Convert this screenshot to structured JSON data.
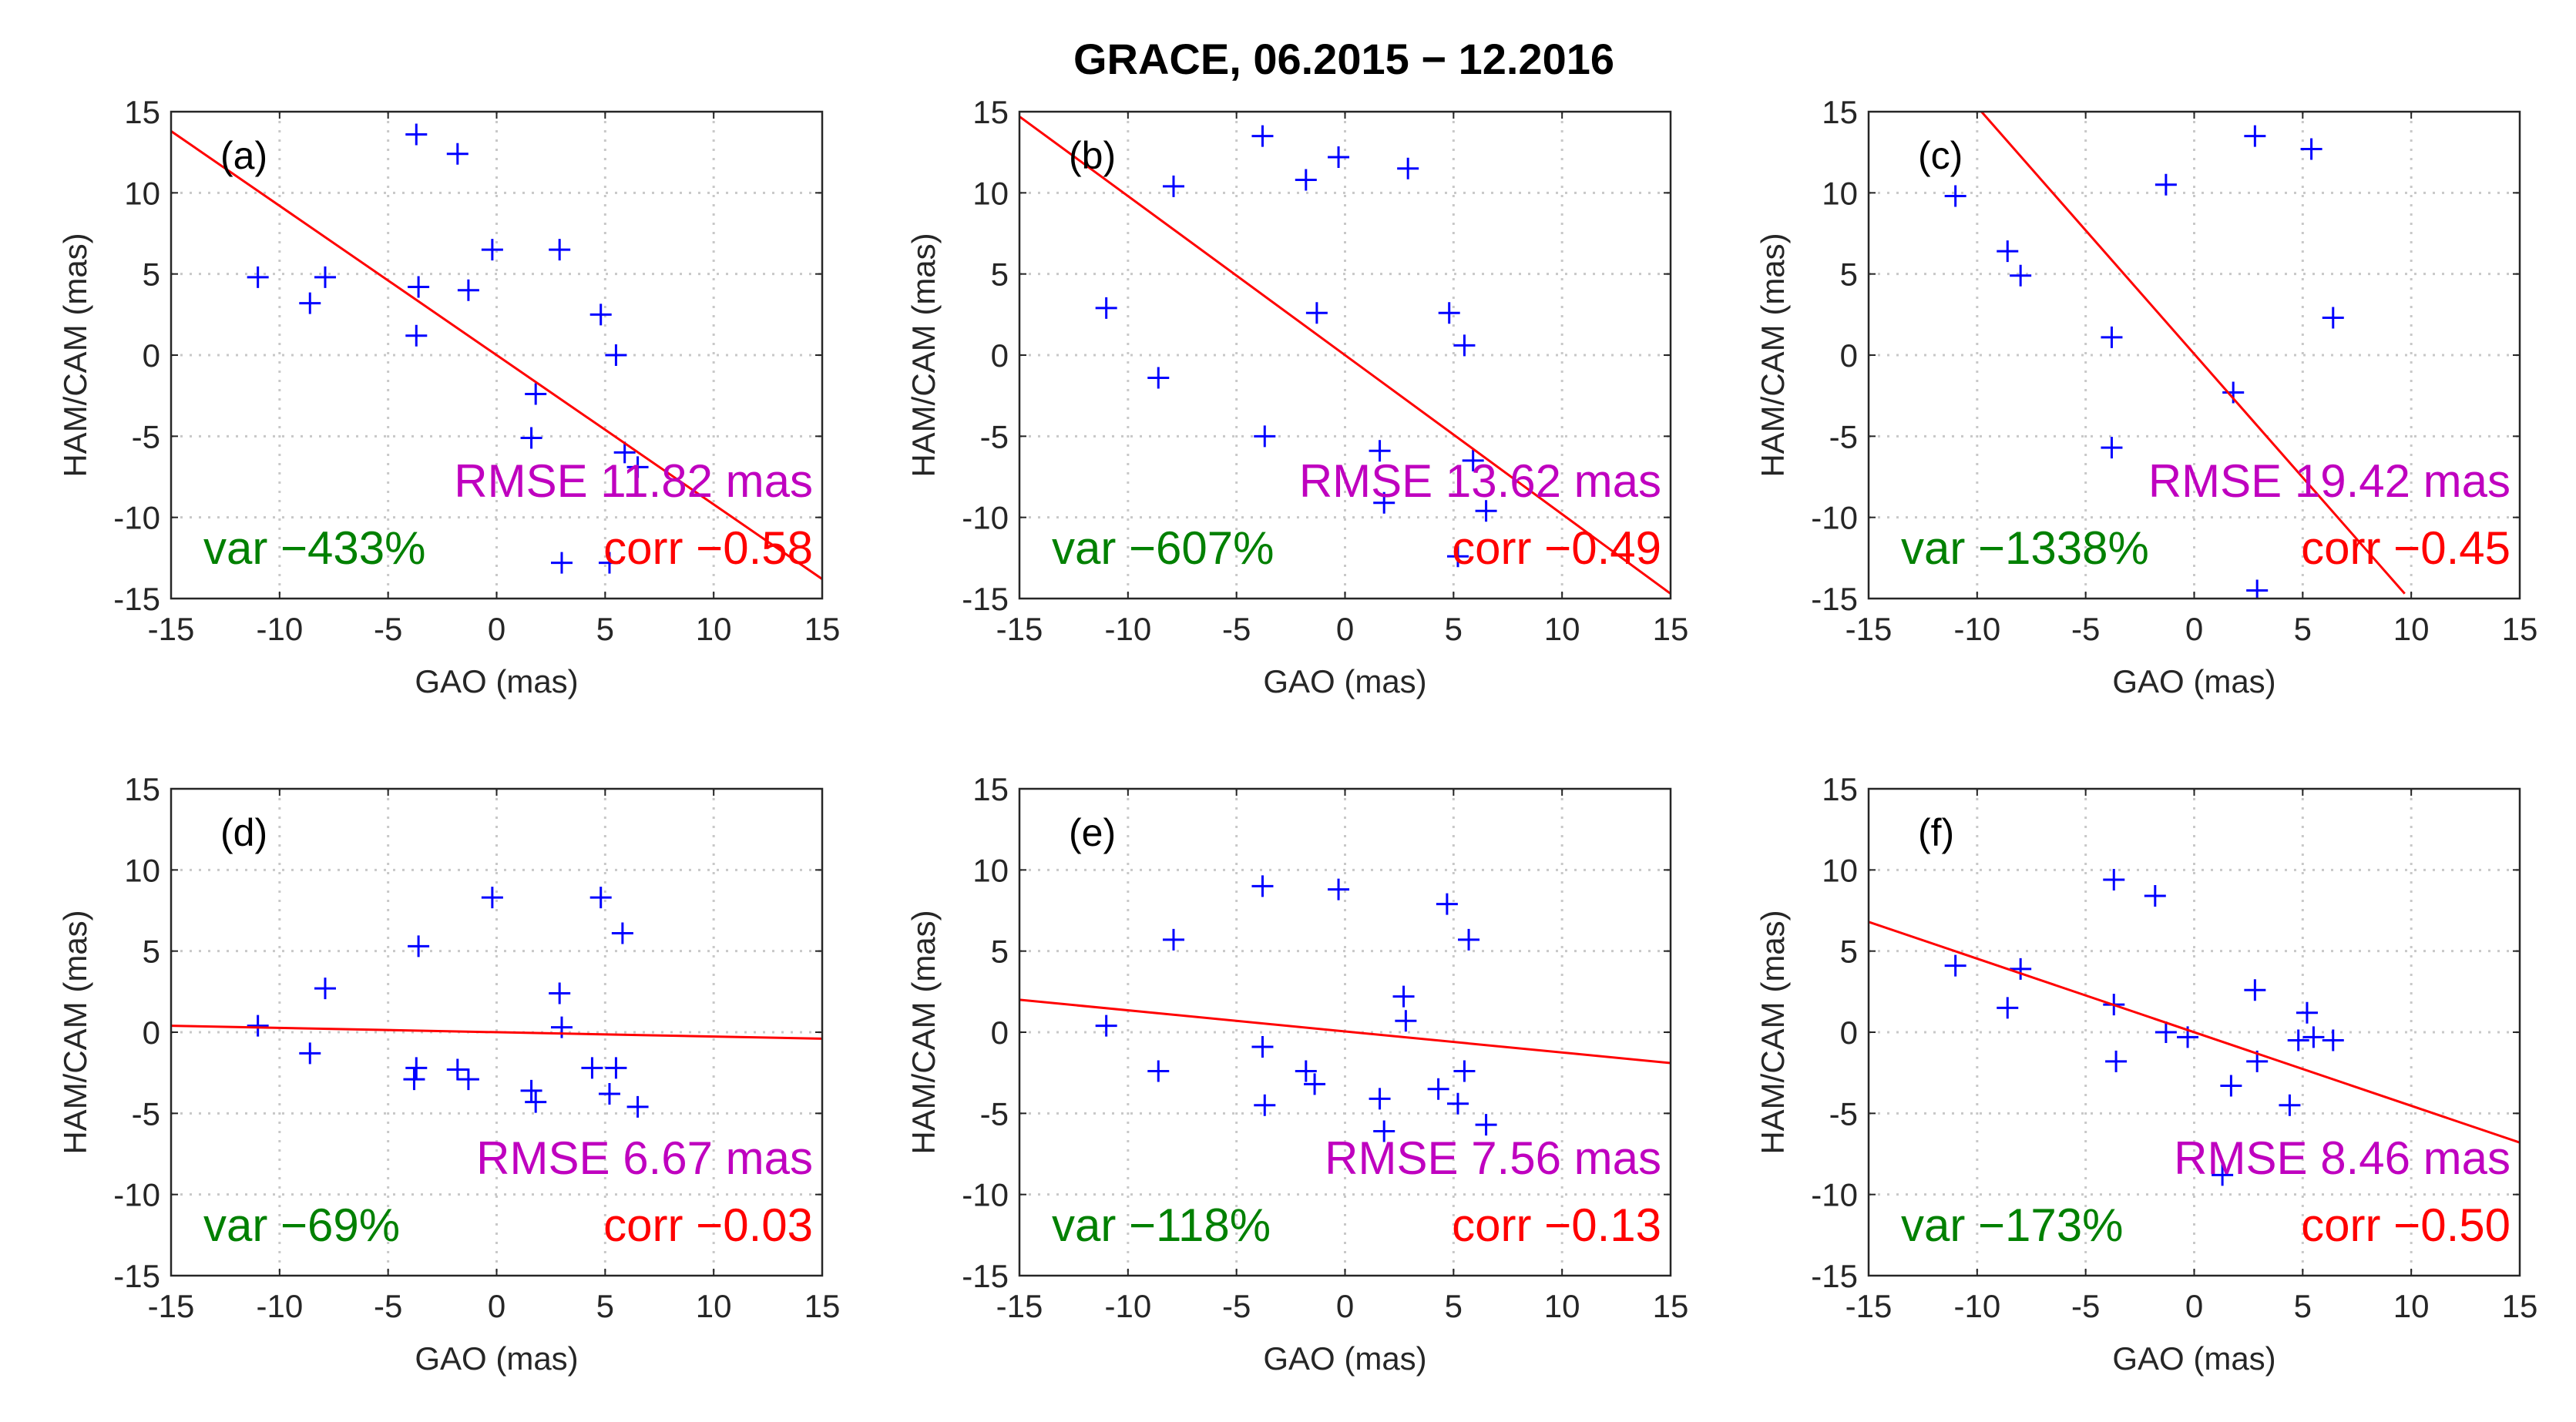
{
  "title": "GRACE, 06.2015 − 12.2016",
  "colors": {
    "points": "#0000ff",
    "fit_line": "#ff0000",
    "rmse": "#bf00bf",
    "var": "#008000",
    "corr": "#ff0000",
    "grid": "#c8c8c8"
  },
  "chart_data": [
    {
      "type": "scatter",
      "panel": "(a)",
      "xlabel": "GAO (mas)",
      "ylabel": "HAM/CAM (mas)",
      "xlim": [
        -15,
        15
      ],
      "ylim": [
        -15,
        15
      ],
      "xticks": [
        -15,
        -10,
        -5,
        0,
        5,
        10,
        15
      ],
      "yticks": [
        -15,
        -10,
        -5,
        0,
        5,
        10,
        15
      ],
      "grid": true,
      "x": [
        -11,
        -8.6,
        -7.9,
        -3.7,
        -3.6,
        -3.7,
        -1.8,
        -1.3,
        -0.2,
        1.6,
        1.8,
        2.9,
        3.0,
        4.8,
        5.2,
        5.5,
        5.9,
        6.5
      ],
      "y": [
        4.8,
        3.2,
        4.8,
        13.6,
        4.2,
        1.2,
        12.4,
        4.0,
        6.5,
        -5.1,
        -2.4,
        6.5,
        -12.8,
        2.5,
        -12.8,
        0.0,
        -6.0,
        -6.9
      ],
      "fit_line": {
        "x": [
          -15,
          15
        ],
        "y": [
          13.8,
          -13.8
        ]
      },
      "rmse_text": "RMSE 11.82 mas",
      "var_text": "var −433%",
      "corr_text": "corr −0.58"
    },
    {
      "type": "scatter",
      "panel": "(b)",
      "xlabel": "GAO (mas)",
      "ylabel": "HAM/CAM (mas)",
      "xlim": [
        -15,
        15
      ],
      "ylim": [
        -15,
        15
      ],
      "xticks": [
        -15,
        -10,
        -5,
        0,
        5,
        10,
        15
      ],
      "yticks": [
        -15,
        -10,
        -5,
        0,
        5,
        10,
        15
      ],
      "grid": true,
      "x": [
        -11,
        -8.6,
        -7.9,
        -3.8,
        -3.7,
        -1.8,
        -1.3,
        -0.3,
        1.6,
        1.8,
        2.9,
        4.8,
        5.2,
        5.5,
        5.9,
        6.5
      ],
      "y": [
        2.9,
        -1.4,
        10.4,
        13.5,
        -5.0,
        10.8,
        2.6,
        12.2,
        -5.9,
        -9.1,
        11.5,
        2.6,
        -12.4,
        0.6,
        -6.5,
        -9.6
      ],
      "fit_line": {
        "x": [
          -15,
          15
        ],
        "y": [
          14.7,
          -14.7
        ]
      },
      "rmse_text": "RMSE 13.62 mas",
      "var_text": "var −607%",
      "corr_text": "corr −0.49"
    },
    {
      "type": "scatter",
      "panel": "(c)",
      "xlabel": "GAO (mas)",
      "ylabel": "HAM/CAM (mas)",
      "xlim": [
        -15,
        15
      ],
      "ylim": [
        -15,
        15
      ],
      "xticks": [
        -15,
        -10,
        -5,
        0,
        5,
        10,
        15
      ],
      "yticks": [
        -15,
        -10,
        -5,
        0,
        5,
        10,
        15
      ],
      "grid": true,
      "x": [
        -11,
        -8.6,
        -8.0,
        -3.8,
        -3.8,
        -1.3,
        1.8,
        2.8,
        2.9,
        5.4,
        6.4
      ],
      "y": [
        9.8,
        6.4,
        4.9,
        1.1,
        -5.7,
        10.5,
        -2.3,
        13.5,
        -14.5,
        12.7,
        2.3
      ],
      "fit_line": {
        "x": [
          -9.8,
          9.7
        ],
        "y": [
          15,
          -14.7
        ]
      },
      "rmse_text": "RMSE 19.42 mas",
      "var_text": "var −1338%",
      "corr_text": "corr −0.45"
    },
    {
      "type": "scatter",
      "panel": "(d)",
      "xlabel": "GAO (mas)",
      "ylabel": "HAM/CAM (mas)",
      "xlim": [
        -15,
        15
      ],
      "ylim": [
        -15,
        15
      ],
      "xticks": [
        -15,
        -10,
        -5,
        0,
        5,
        10,
        15
      ],
      "yticks": [
        -15,
        -10,
        -5,
        0,
        5,
        10,
        15
      ],
      "grid": true,
      "x": [
        -11,
        -8.6,
        -7.9,
        -3.7,
        -3.8,
        -3.6,
        -1.8,
        -1.3,
        -0.2,
        1.6,
        1.8,
        2.9,
        3.0,
        4.4,
        4.8,
        5.2,
        5.5,
        5.8,
        6.5
      ],
      "y": [
        0.4,
        -1.3,
        2.7,
        -2.2,
        -2.9,
        5.3,
        -2.3,
        -2.9,
        8.3,
        -3.6,
        -4.3,
        2.4,
        0.3,
        -2.2,
        8.3,
        -3.8,
        -2.2,
        6.1,
        -4.6
      ],
      "fit_line": {
        "x": [
          -15,
          15
        ],
        "y": [
          0.4,
          -0.4
        ]
      },
      "rmse_text": "RMSE 6.67 mas",
      "var_text": "var −69%",
      "corr_text": "corr −0.03"
    },
    {
      "type": "scatter",
      "panel": "(e)",
      "xlabel": "GAO (mas)",
      "ylabel": "HAM/CAM (mas)",
      "xlim": [
        -15,
        15
      ],
      "ylim": [
        -15,
        15
      ],
      "xticks": [
        -15,
        -10,
        -5,
        0,
        5,
        10,
        15
      ],
      "yticks": [
        -15,
        -10,
        -5,
        0,
        5,
        10,
        15
      ],
      "grid": true,
      "x": [
        -11,
        -8.6,
        -7.9,
        -3.8,
        -3.8,
        -3.7,
        -1.8,
        -1.4,
        -0.3,
        1.6,
        1.8,
        2.7,
        2.8,
        4.3,
        4.7,
        5.2,
        5.5,
        5.7,
        6.5
      ],
      "y": [
        0.4,
        -2.4,
        5.7,
        9.0,
        -0.9,
        -4.5,
        -2.4,
        -3.2,
        8.8,
        -4.1,
        -6.1,
        2.2,
        0.7,
        -3.5,
        7.9,
        -4.4,
        -2.4,
        5.7,
        -5.7
      ],
      "fit_line": {
        "x": [
          -15,
          15
        ],
        "y": [
          2.0,
          -1.9
        ]
      },
      "rmse_text": "RMSE 7.56 mas",
      "var_text": "var −118%",
      "corr_text": "corr −0.13"
    },
    {
      "type": "scatter",
      "panel": "(f)",
      "xlabel": "GAO (mas)",
      "ylabel": "HAM/CAM (mas)",
      "xlim": [
        -15,
        15
      ],
      "ylim": [
        -15,
        15
      ],
      "xticks": [
        -15,
        -10,
        -5,
        0,
        5,
        10,
        15
      ],
      "yticks": [
        -15,
        -10,
        -5,
        0,
        5,
        10,
        15
      ],
      "grid": true,
      "x": [
        -11,
        -8.6,
        -8.0,
        -3.7,
        -3.7,
        -3.6,
        -1.8,
        -1.3,
        -0.3,
        1.3,
        1.7,
        2.8,
        2.9,
        4.4,
        4.8,
        5.2,
        5.5,
        6.4
      ],
      "y": [
        4.1,
        1.5,
        3.9,
        9.4,
        1.7,
        -1.8,
        8.4,
        0.0,
        -0.3,
        -8.8,
        -3.3,
        2.6,
        -1.8,
        -4.5,
        -0.5,
        1.2,
        -0.3,
        -0.5
      ],
      "fit_line": {
        "x": [
          -15,
          15
        ],
        "y": [
          6.8,
          -6.8
        ]
      },
      "rmse_text": "RMSE 8.46 mas",
      "var_text": "var −173%",
      "corr_text": "corr −0.50"
    }
  ]
}
